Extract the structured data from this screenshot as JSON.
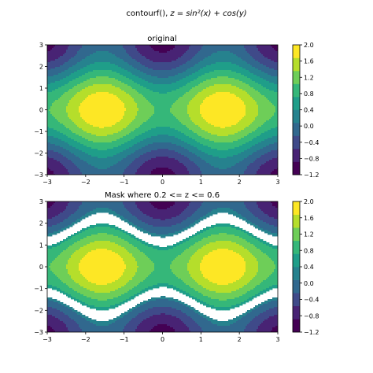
{
  "figure": {
    "suptitle_prefix": "contourf(),",
    "suptitle_formula": "z = sin²(x) + cos(y)"
  },
  "chart_data": [
    {
      "type": "contourf",
      "title": "original",
      "function": "sin(x)^2 + cos(y)",
      "xlim": [
        -3,
        3
      ],
      "ylim": [
        -3,
        3
      ],
      "xticks": [
        "−3",
        "−2",
        "−1",
        "0",
        "1",
        "2",
        "3"
      ],
      "yticks": [
        "−3",
        "−2",
        "−1",
        "0",
        "1",
        "2",
        "3"
      ],
      "levels": [
        -1.2,
        -1.0,
        -0.8,
        -0.6,
        -0.4,
        -0.2,
        0.0,
        0.2,
        0.4,
        0.6,
        0.8,
        1.0,
        1.2,
        1.4,
        1.6,
        1.8,
        2.0
      ],
      "mask": null,
      "colorbar_ticks": [
        "2.0",
        "1.6",
        "1.2",
        "0.8",
        "0.4",
        "0.0",
        "−0.4",
        "−0.8",
        "−1.2"
      ]
    },
    {
      "type": "contourf",
      "title": "Mask where 0.2 <= z <= 0.6",
      "function": "sin(x)^2 + cos(y)",
      "xlim": [
        -3,
        3
      ],
      "ylim": [
        -3,
        3
      ],
      "xticks": [
        "−3",
        "−2",
        "−1",
        "0",
        "1",
        "2",
        "3"
      ],
      "yticks": [
        "−3",
        "−2",
        "−1",
        "0",
        "1",
        "2",
        "3"
      ],
      "levels": [
        -1.2,
        -1.0,
        -0.8,
        -0.6,
        -0.4,
        -0.2,
        0.0,
        0.2,
        0.4,
        0.6,
        0.8,
        1.0,
        1.2,
        1.4,
        1.6,
        1.8,
        2.0
      ],
      "mask": [
        0.2,
        0.6
      ],
      "colorbar_ticks": [
        "2.0",
        "1.6",
        "1.2",
        "0.8",
        "0.4",
        "0.0",
        "−0.4",
        "−0.8",
        "−1.2"
      ]
    }
  ],
  "colors": {
    "bands": [
      "#440154",
      "#482374",
      "#3f4a89",
      "#31688e",
      "#26828e",
      "#1f9e89",
      "#35b779",
      "#6ece58",
      "#b5de2b",
      "#fde725"
    ]
  }
}
